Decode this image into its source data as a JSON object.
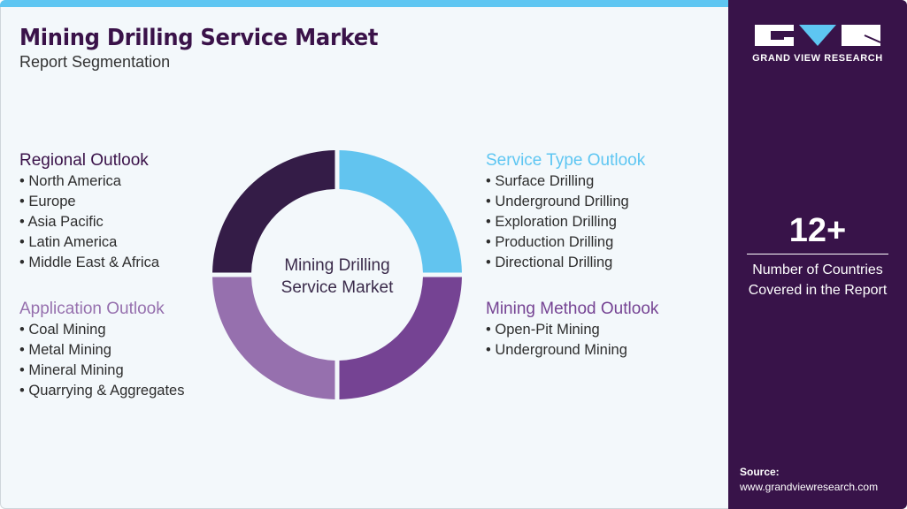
{
  "header": {
    "title": "Mining Drilling Service Market",
    "subtitle": "Report Segmentation"
  },
  "center_label": [
    "Mining Drilling",
    "Service Market"
  ],
  "segments": [
    {
      "title": "Regional Outlook",
      "color": "#341c47",
      "items": [
        "North America",
        "Europe",
        "Asia Pacific",
        "Latin America",
        "Middle East & Africa"
      ]
    },
    {
      "title": "Service Type Outlook",
      "color": "#5ec6f2",
      "items": [
        "Surface Drilling",
        "Underground Drilling",
        "Exploration Drilling",
        "Production Drilling",
        "Directional Drilling"
      ]
    },
    {
      "title": "Application Outlook",
      "color": "#9670ae",
      "items": [
        "Coal Mining",
        "Metal Mining",
        "Mineral Mining",
        "Quarrying & Aggregates"
      ]
    },
    {
      "title": "Mining Method Outlook",
      "color": "#754393",
      "items": [
        "Open-Pit Mining",
        "Underground Mining"
      ]
    }
  ],
  "donut_colors": {
    "top_left": "#341c47",
    "top_right": "#62c4ef",
    "bottom_right": "#754393",
    "bottom_left": "#9670ae"
  },
  "sidebar": {
    "logo_text": "GRAND VIEW RESEARCH",
    "stat_value": "12+",
    "stat_label": [
      "Number of Countries",
      "Covered in the Report"
    ],
    "source_label": "Source:",
    "source_url": "www.grandviewresearch.com"
  }
}
